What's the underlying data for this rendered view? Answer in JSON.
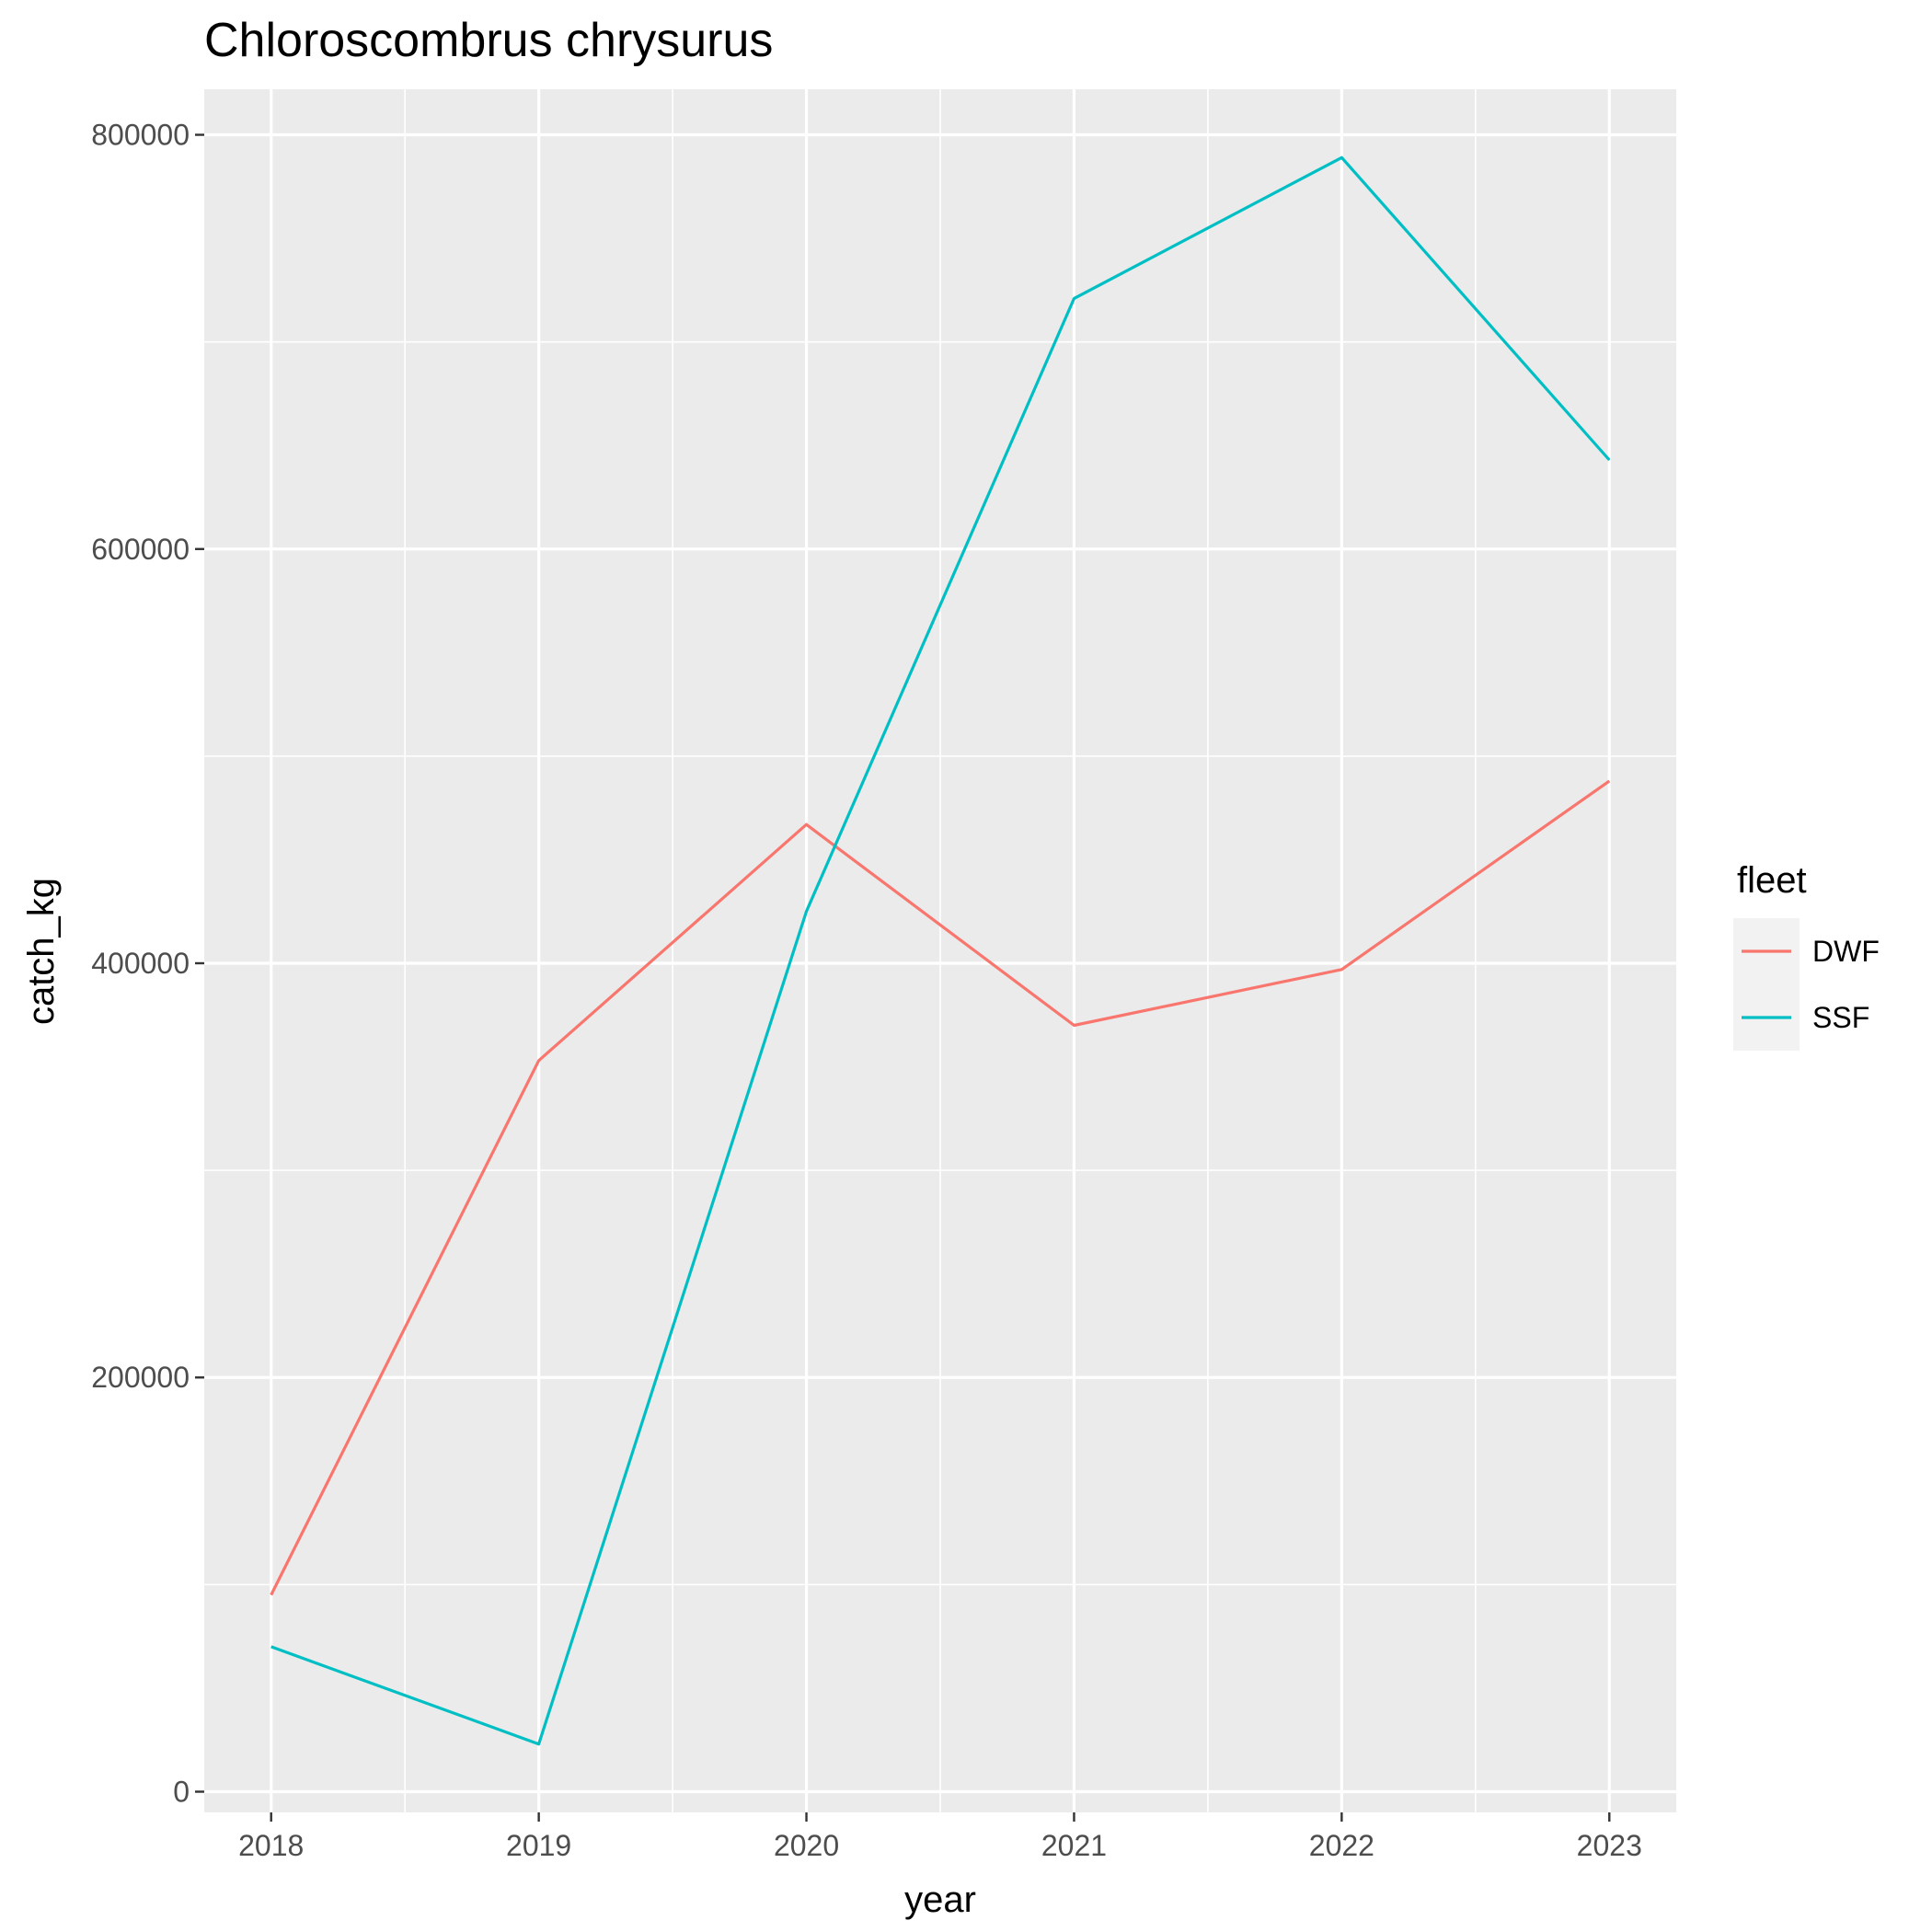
{
  "chart_data": {
    "type": "line",
    "title": "Chloroscombrus chrysurus",
    "xlabel": "year",
    "ylabel": "catch_kg",
    "x": [
      2018,
      2019,
      2020,
      2021,
      2022,
      2023
    ],
    "x_tick_labels": [
      "2018",
      "2019",
      "2020",
      "2021",
      "2022",
      "2023"
    ],
    "y_ticks": [
      0,
      200000,
      400000,
      600000,
      800000
    ],
    "y_tick_labels": [
      "0",
      "200000",
      "400000",
      "600000",
      "800000"
    ],
    "xlim": [
      2017.75,
      2023.25
    ],
    "ylim": [
      -10000,
      822000
    ],
    "grid": true,
    "legend": {
      "title": "fleet",
      "placement": "right"
    },
    "series": [
      {
        "name": "DWF",
        "color": "#F8766D",
        "values": [
          95000,
          353000,
          467000,
          370000,
          397000,
          488000
        ]
      },
      {
        "name": "SSF",
        "color": "#00BFC4",
        "values": [
          70000,
          23000,
          425000,
          721000,
          789000,
          643000
        ]
      }
    ]
  }
}
